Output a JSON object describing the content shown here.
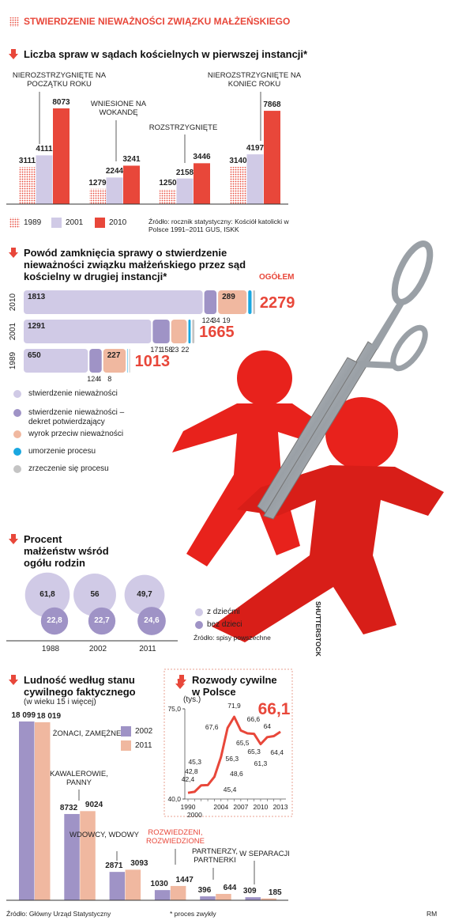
{
  "title": "STWIERDZENIE NIEWAŻNOŚCI ZWIĄZKU MAŁŻEŃSKIEGO",
  "illustration_credit": "SHUTTERSTOCK",
  "footnote": "* proces zwykły",
  "author": "RM",
  "chart_data": [
    {
      "type": "bar",
      "title": "Liczba spraw w sądach kościelnych w pierwszej instancji*",
      "categories": [
        "NIEROZSTRZYGNIĘTE NA POCZĄTKU ROKU",
        "WNIESIONE NA WOKANDĘ",
        "ROZSTRZYGNIĘTE",
        "NIEROZSTRZYGNIĘTE NA KONIEC ROKU"
      ],
      "series": [
        {
          "name": "1989",
          "color": "#e8473a",
          "pattern": "dots",
          "values": [
            3111,
            1279,
            1250,
            3140
          ]
        },
        {
          "name": "2001",
          "color": "#d0cae6",
          "values": [
            4111,
            2244,
            2158,
            4197
          ]
        },
        {
          "name": "2010",
          "color": "#e8473a",
          "values": [
            8073,
            3241,
            3446,
            7868
          ]
        }
      ],
      "source": "Źródło: rocznik statystyczny: Kościół katolicki w Polsce 1991–2011 GUS, ISKK"
    },
    {
      "type": "stacked-bar",
      "orientation": "horizontal",
      "title": "Powód zamknięcia sprawy o stwierdzenie nieważności związku małżeńskiego przez sąd kościelny w drugiej instancji*",
      "categories": [
        "2010",
        "2001",
        "1989"
      ],
      "series": [
        {
          "name": "stwierdzenie nieważności",
          "color": "#d0cae6",
          "values": [
            1813,
            1291,
            650
          ]
        },
        {
          "name": "stwierdzenie nieważności – dekret potwierdzający",
          "color": "#9f93c6",
          "values": [
            124,
            171,
            124
          ]
        },
        {
          "name": "wyrok przeciw nieważności",
          "color": "#f0b8a0",
          "values": [
            289,
            158,
            227
          ]
        },
        {
          "name": "umorzenie procesu",
          "color": "#1aa7e0",
          "values": [
            34,
            23,
            4
          ]
        },
        {
          "name": "zrzeczenie się procesu",
          "color": "#c4c4c4",
          "values": [
            19,
            22,
            8
          ]
        }
      ],
      "totals": [
        2279,
        1665,
        1013
      ],
      "totals_label": "OGÓŁEM",
      "totals_color": "#e8473a"
    },
    {
      "type": "bubble",
      "title": "Procent małżeństw wśród ogółu rodzin",
      "categories": [
        "1988",
        "2002",
        "2011"
      ],
      "series": [
        {
          "name": "z dziećmi",
          "color": "#d0cae6",
          "values": [
            61.8,
            56,
            49.7
          ],
          "value_labels": [
            "61,8",
            "56",
            "49,7"
          ]
        },
        {
          "name": "bez dzieci",
          "color": "#9f93c6",
          "values": [
            22.8,
            22.7,
            24.6
          ],
          "value_labels": [
            "22,8",
            "22,7",
            "24,6"
          ]
        }
      ],
      "source": "Źródło: spisy powszechne"
    },
    {
      "type": "bar",
      "title": "Ludność według stanu cywilnego faktycznego",
      "subtitle": "(w wieku 15 i więcej)",
      "categories": [
        "ŻONACI, ZAMĘŻNE",
        "KAWALEROWIE, PANNY",
        "WDOWCY, WDOWY",
        "ROZWIEDZENI, ROZWIEDZIONE",
        "PARTNERZY, PARTNERKI",
        "W SEPARACJI"
      ],
      "category_colors": [
        "#222222",
        "#222222",
        "#222222",
        "#e8473a",
        "#222222",
        "#222222"
      ],
      "series": [
        {
          "name": "2002",
          "color": "#9f93c6",
          "values": [
            18099,
            8732,
            2871,
            1030,
            396,
            309
          ],
          "value_labels": [
            "18 099",
            "8732",
            "2871",
            "1030",
            "396",
            "309"
          ]
        },
        {
          "name": "2011",
          "color": "#f0b8a0",
          "values": [
            18019,
            9024,
            3093,
            1447,
            644,
            185
          ],
          "value_labels": [
            "18 019",
            "9024",
            "3093",
            "1447",
            "644",
            "185"
          ]
        }
      ],
      "source": "Źródło: Główny Urząd Statystyczny"
    },
    {
      "type": "line",
      "title": "Rozwody cywilne w Polsce",
      "subtitle": "(tys.)",
      "categories": [
        "1990",
        "2000",
        null,
        null,
        null,
        "2004",
        null,
        null,
        "2007",
        null,
        null,
        "2010",
        null,
        null,
        "2013"
      ],
      "values": [
        42.4,
        42.8,
        45.3,
        45.4,
        48.6,
        56.3,
        67.6,
        71.9,
        66.6,
        65.5,
        65.3,
        61.3,
        64,
        64.4,
        66.1
      ],
      "value_labels": [
        "42,4",
        "42,8",
        "45,3",
        "45,4",
        "48,6",
        "56,3",
        "67,6",
        "71,9",
        "66,6",
        "65,5",
        "65,3",
        "61,3",
        "64",
        "64,4",
        "66,1"
      ],
      "color": "#e8473a",
      "ylim": [
        40,
        75
      ],
      "yticks": [
        {
          "value": 40,
          "label": "40,0"
        },
        {
          "value": 75,
          "label": "75,0"
        }
      ]
    }
  ]
}
